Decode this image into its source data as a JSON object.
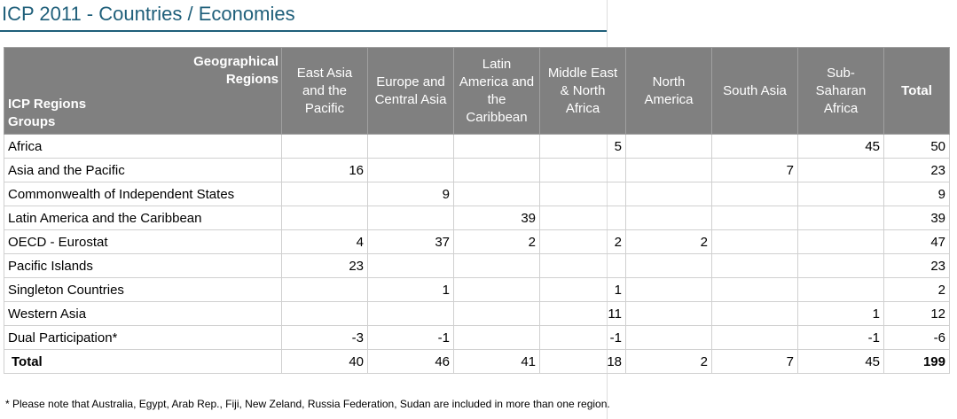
{
  "page": {
    "title": "ICP 2011 - Countries / Economies",
    "footnote": "* Please note that Australia, Egypt, Arab Rep., Fiji, New Zeland, Russia Federation, Sudan are included in more than one region."
  },
  "table": {
    "corner_top": "Geographical Regions",
    "corner_bottom": "ICP Regions Groups",
    "columns": [
      "East Asia and the Pacific",
      "Europe and Central Asia",
      "Latin America and the Caribbean",
      "Middle East & North Africa",
      "North America",
      "South Asia",
      "Sub-Saharan Africa",
      "Total"
    ],
    "rows": [
      {
        "name": "Africa",
        "cells": [
          "",
          "",
          "",
          "5",
          "",
          "",
          "45",
          "50"
        ]
      },
      {
        "name": "Asia and the Pacific",
        "cells": [
          "16",
          "",
          "",
          "",
          "",
          "7",
          "",
          "23"
        ]
      },
      {
        "name": "Commonwealth of Independent States",
        "cells": [
          "",
          "9",
          "",
          "",
          "",
          "",
          "",
          "9"
        ]
      },
      {
        "name": "Latin America and the Caribbean",
        "cells": [
          "",
          "",
          "39",
          "",
          "",
          "",
          "",
          "39"
        ]
      },
      {
        "name": "OECD - Eurostat",
        "cells": [
          "4",
          "37",
          "2",
          "2",
          "2",
          "",
          "",
          "47"
        ]
      },
      {
        "name": "Pacific Islands",
        "cells": [
          "23",
          "",
          "",
          "",
          "",
          "",
          "",
          "23"
        ]
      },
      {
        "name": "Singleton Countries",
        "cells": [
          "",
          "1",
          "",
          "1",
          "",
          "",
          "",
          "2"
        ]
      },
      {
        "name": "Western Asia",
        "cells": [
          "",
          "",
          "",
          "11",
          "",
          "",
          "1",
          "12"
        ]
      },
      {
        "name": "Dual Participation*",
        "cells": [
          "-3",
          "-1",
          "",
          "-1",
          "",
          "",
          "-1",
          "-6"
        ]
      }
    ],
    "total_row": {
      "name": "Total",
      "cells": [
        "40",
        "46",
        "41",
        "18",
        "2",
        "7",
        "45",
        "199"
      ]
    }
  }
}
